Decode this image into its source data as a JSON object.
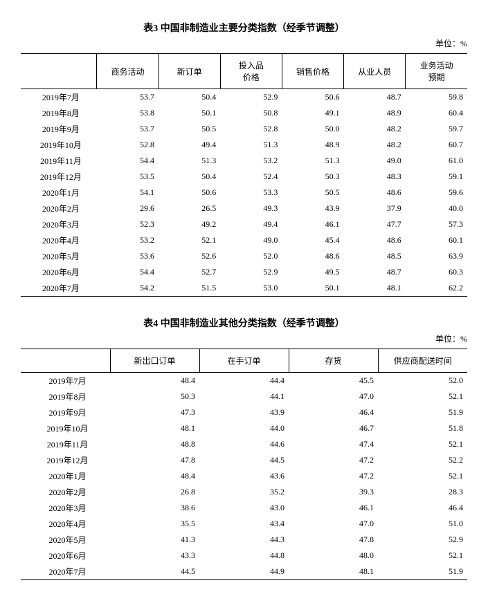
{
  "table3": {
    "title": "表3  中国非制造业主要分类指数（经季节调整）",
    "unit": "单位：%",
    "columns": [
      "商务活动",
      "新订单",
      "投入品\n价格",
      "销售价格",
      "从业人员",
      "业务活动\n预期"
    ],
    "periods": [
      "2019年7月",
      "2019年8月",
      "2019年9月",
      "2019年10月",
      "2019年11月",
      "2019年12月",
      "2020年1月",
      "2020年2月",
      "2020年3月",
      "2020年4月",
      "2020年5月",
      "2020年6月",
      "2020年7月"
    ],
    "rows": [
      [
        "53.7",
        "50.4",
        "52.9",
        "50.6",
        "48.7",
        "59.8"
      ],
      [
        "53.8",
        "50.1",
        "50.8",
        "49.1",
        "48.9",
        "60.4"
      ],
      [
        "53.7",
        "50.5",
        "52.8",
        "50.0",
        "48.2",
        "59.7"
      ],
      [
        "52.8",
        "49.4",
        "51.3",
        "48.9",
        "48.2",
        "60.7"
      ],
      [
        "54.4",
        "51.3",
        "53.2",
        "51.3",
        "49.0",
        "61.0"
      ],
      [
        "53.5",
        "50.4",
        "52.4",
        "50.3",
        "48.3",
        "59.1"
      ],
      [
        "54.1",
        "50.6",
        "53.3",
        "50.5",
        "48.6",
        "59.6"
      ],
      [
        "29.6",
        "26.5",
        "49.3",
        "43.9",
        "37.9",
        "40.0"
      ],
      [
        "52.3",
        "49.2",
        "49.4",
        "46.1",
        "47.7",
        "57.3"
      ],
      [
        "53.2",
        "52.1",
        "49.0",
        "45.4",
        "48.6",
        "60.1"
      ],
      [
        "53.6",
        "52.6",
        "52.0",
        "48.6",
        "48.5",
        "63.9"
      ],
      [
        "54.4",
        "52.7",
        "52.9",
        "49.5",
        "48.7",
        "60.3"
      ],
      [
        "54.2",
        "51.5",
        "53.0",
        "50.1",
        "48.1",
        "62.2"
      ]
    ]
  },
  "table4": {
    "title": "表4  中国非制造业其他分类指数（经季节调整）",
    "unit": "单位：%",
    "columns": [
      "新出口订单",
      "在手订单",
      "存货",
      "供应商配送时间"
    ],
    "periods": [
      "2019年7月",
      "2019年8月",
      "2019年9月",
      "2019年10月",
      "2019年11月",
      "2019年12月",
      "2020年1月",
      "2020年2月",
      "2020年3月",
      "2020年4月",
      "2020年5月",
      "2020年6月",
      "2020年7月"
    ],
    "rows": [
      [
        "48.4",
        "44.4",
        "45.5",
        "52.0"
      ],
      [
        "50.3",
        "44.1",
        "47.0",
        "52.1"
      ],
      [
        "47.3",
        "43.9",
        "46.4",
        "51.9"
      ],
      [
        "48.1",
        "44.0",
        "46.7",
        "51.8"
      ],
      [
        "48.8",
        "44.6",
        "47.4",
        "52.1"
      ],
      [
        "47.8",
        "44.5",
        "47.2",
        "52.2"
      ],
      [
        "48.4",
        "43.6",
        "47.2",
        "52.1"
      ],
      [
        "26.8",
        "35.2",
        "39.3",
        "28.3"
      ],
      [
        "38.6",
        "43.0",
        "46.1",
        "46.4"
      ],
      [
        "35.5",
        "43.4",
        "47.0",
        "51.0"
      ],
      [
        "41.3",
        "44.3",
        "47.8",
        "52.9"
      ],
      [
        "43.3",
        "44.8",
        "48.0",
        "52.1"
      ],
      [
        "44.5",
        "44.9",
        "48.1",
        "51.9"
      ]
    ]
  }
}
